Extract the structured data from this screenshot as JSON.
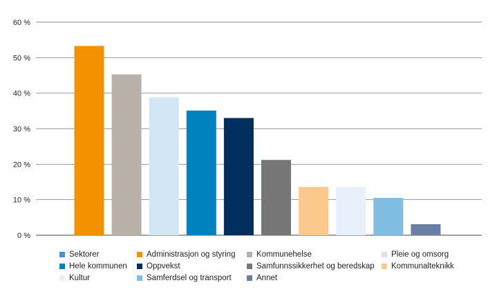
{
  "chart_data": {
    "type": "bar",
    "categories": [
      "Administrasjon og styring",
      "Kommunehelse",
      "Pleie og omsorg",
      "Hele kommunen",
      "Oppvekst",
      "Samfunnssikkerhet og beredskap",
      "Kommunalteknikk",
      "Kultur",
      "Samferdsel og transport",
      "Annet"
    ],
    "values": [
      53.3,
      45.3,
      38.8,
      35.1,
      33.0,
      21.2,
      13.6,
      13.6,
      10.5,
      3.1
    ],
    "colors": [
      "#f39200",
      "#b7b1a9",
      "#d2e6f6",
      "#0082c0",
      "#002f5e",
      "#777777",
      "#fcc98d",
      "#e8f1fb",
      "#7fbde3",
      "#6b7fa6"
    ],
    "ylim": [
      0,
      60
    ],
    "yticks": [
      0,
      10,
      20,
      30,
      40,
      50,
      60
    ],
    "ytick_labels": [
      "0 %",
      "10 %",
      "20 %",
      "30 %",
      "40 %",
      "50 %",
      "60 %"
    ],
    "title": "",
    "xlabel": "",
    "ylabel": "",
    "grid": true,
    "legend_position": "bottom"
  },
  "legend": [
    {
      "label": "Sektorer",
      "color": "#4a90d9"
    },
    {
      "label": "Administrasjon og styring",
      "color": "#f39200"
    },
    {
      "label": "Kommunehelse",
      "color": "#b7b1a9"
    },
    {
      "label": "Pleie og omsorg",
      "color": "#d2e6f6"
    },
    {
      "label": "Hele kommunen",
      "color": "#0082c0"
    },
    {
      "label": "Oppvekst",
      "color": "#002f5e"
    },
    {
      "label": "Samfunnssikkerhet og beredskap",
      "color": "#777777"
    },
    {
      "label": "Kommunalteknikk",
      "color": "#fcc98d"
    },
    {
      "label": "Kultur",
      "color": "#e8f1fb"
    },
    {
      "label": "Samferdsel og transport",
      "color": "#7fbde3"
    },
    {
      "label": "Annet",
      "color": "#6b7fa6"
    }
  ]
}
